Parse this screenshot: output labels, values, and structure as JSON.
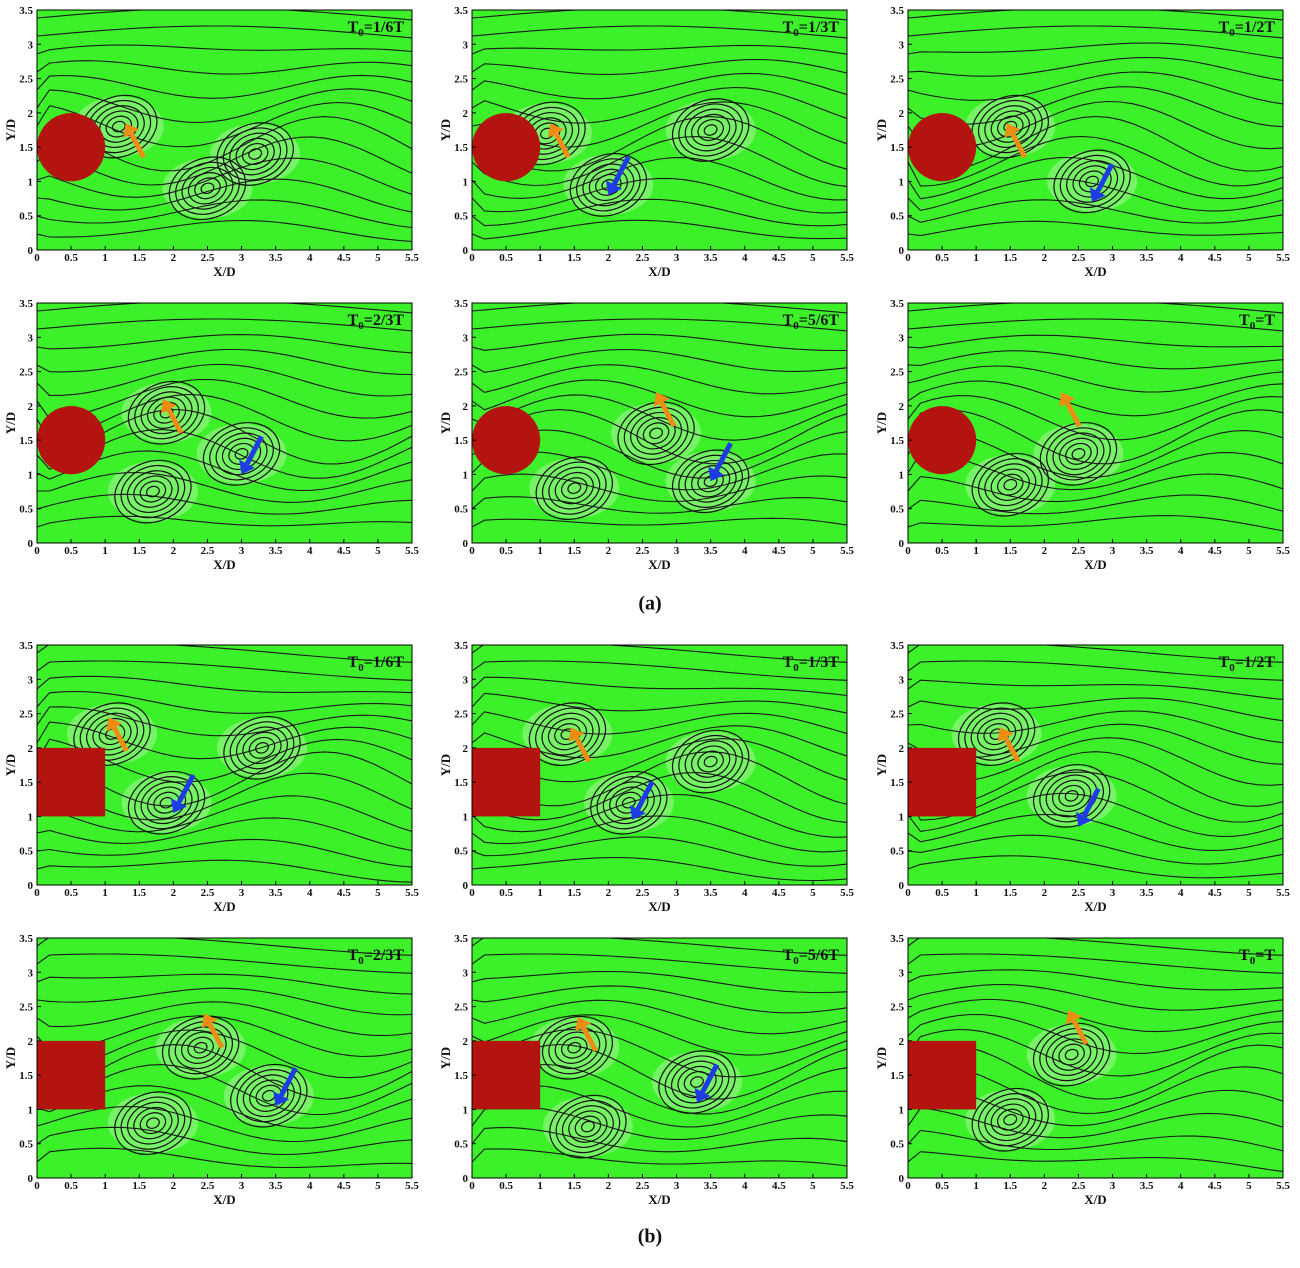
{
  "figure": {
    "axes": {
      "xlabel": "X/D",
      "ylabel": "Y/D",
      "xlim": [
        0,
        5.5
      ],
      "ylim": [
        0,
        3.5
      ],
      "xticks": [
        0,
        0.5,
        1,
        1.5,
        2,
        2.5,
        3,
        3.5,
        4,
        4.5,
        5,
        5.5
      ],
      "yticks": [
        0,
        0.5,
        1,
        1.5,
        2,
        2.5,
        3,
        3.5
      ]
    },
    "field_color": "#3cf02a",
    "obstacle_color": "#b3140f",
    "groups": [
      {
        "label": "(a)",
        "obstacle": "circle",
        "panels": [
          {
            "label": {
              "base": "T",
              "sub": "0",
              "rest": "=1/6T"
            }
          },
          {
            "label": {
              "base": "T",
              "sub": "0",
              "rest": "=1/3T"
            }
          },
          {
            "label": {
              "base": "T",
              "sub": "0",
              "rest": "=1/2T"
            }
          },
          {
            "label": {
              "base": "T",
              "sub": "0",
              "rest": "=2/3T"
            }
          },
          {
            "label": {
              "base": "T",
              "sub": "0",
              "rest": "=5/6T"
            }
          },
          {
            "label": {
              "base": "T",
              "sub": "0",
              "rest": "=T"
            }
          }
        ]
      },
      {
        "label": "(b)",
        "obstacle": "square",
        "panels": [
          {
            "label": {
              "base": "T",
              "sub": "0",
              "rest": "=1/6T"
            }
          },
          {
            "label": {
              "base": "T",
              "sub": "0",
              "rest": "=1/3T"
            }
          },
          {
            "label": {
              "base": "T",
              "sub": "0",
              "rest": "=1/2T"
            }
          },
          {
            "label": {
              "base": "T",
              "sub": "0",
              "rest": "=2/3T"
            }
          },
          {
            "label": {
              "base": "T",
              "sub": "0",
              "rest": "=5/6T"
            }
          },
          {
            "label": {
              "base": "T",
              "sub": "0",
              "rest": "=T"
            }
          }
        ]
      }
    ]
  }
}
